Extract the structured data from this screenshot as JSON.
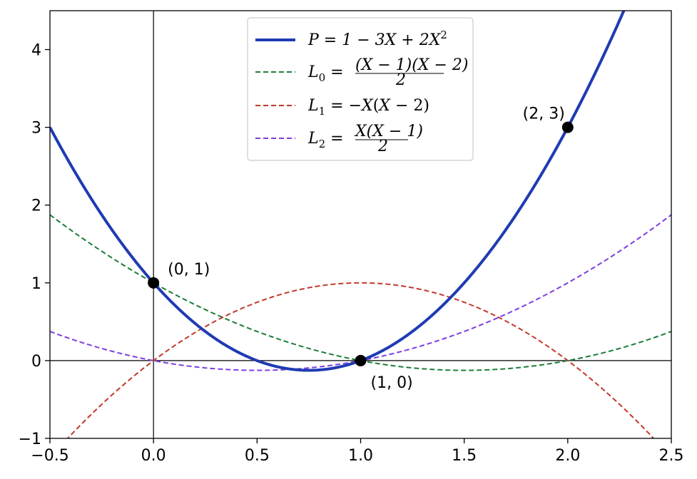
{
  "chart_data": {
    "type": "line",
    "xlim": [
      -0.5,
      2.5
    ],
    "ylim": [
      -1,
      4.5
    ],
    "x_ticks": [
      -0.5,
      0.0,
      0.5,
      1.0,
      1.5,
      2.0,
      2.5
    ],
    "x_tick_labels": [
      "−0.5",
      "0.0",
      "0.5",
      "1.0",
      "1.5",
      "2.0",
      "2.5"
    ],
    "y_ticks": [
      -1,
      0,
      1,
      2,
      3,
      4
    ],
    "y_tick_labels": [
      "−1",
      "0",
      "1",
      "2",
      "3",
      "4"
    ],
    "grid": false,
    "legend_position": "top-center",
    "series": [
      {
        "name": "P = 1 − 3X + 2X²",
        "key": "P",
        "color": "#1f3bb3",
        "style": "solid",
        "coefficients": [
          1,
          -3,
          2
        ]
      },
      {
        "name": "L₀ = (X − 1)(X − 2) / 2",
        "key": "L0",
        "color": "#1e7d3a",
        "style": "dashed",
        "coefficients": [
          1,
          -1.5,
          0.5
        ]
      },
      {
        "name": "L₁ = −X(X − 2)",
        "key": "L1",
        "color": "#c0392b",
        "style": "dashed",
        "coefficients": [
          0,
          2,
          -1
        ]
      },
      {
        "name": "L₂ = X(X − 1) / 2",
        "key": "L2",
        "color": "#7d3fe0",
        "style": "dashed",
        "coefficients": [
          0,
          -0.5,
          0.5
        ]
      }
    ],
    "points": [
      {
        "x": 0,
        "y": 1,
        "label": "(0, 1)"
      },
      {
        "x": 1,
        "y": 0,
        "label": "(1, 0)"
      },
      {
        "x": 2,
        "y": 3,
        "label": "(2, 3)"
      }
    ]
  }
}
